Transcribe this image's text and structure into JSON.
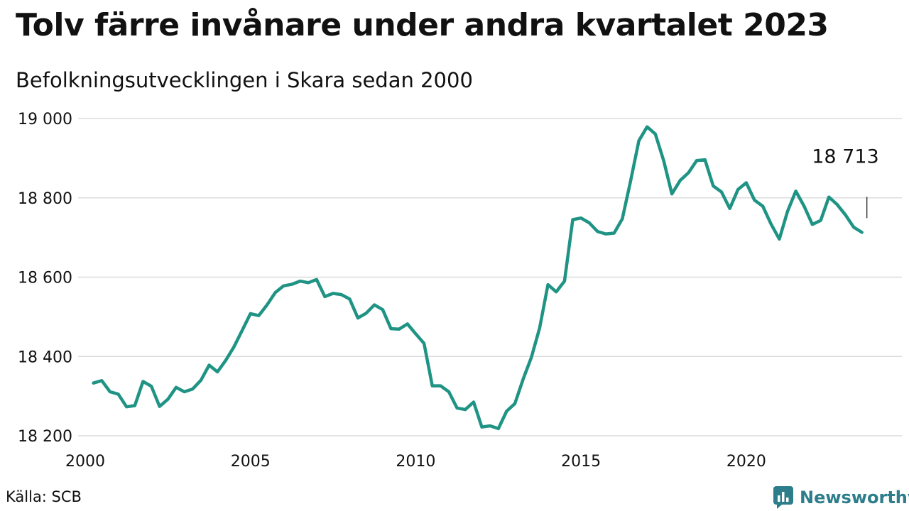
{
  "title": "Tolv färre invånare under andra kvartalet 2023",
  "subtitle": "Befolkningsutvecklingen i Skara sedan 2000",
  "source": "Källa: SCB",
  "brand": "Newsworthy",
  "colors": {
    "line": "#1f9384",
    "grid": "#dcdcdc",
    "brand": "#2d7d8b"
  },
  "chart_data": {
    "type": "line",
    "title": "Tolv färre invånare under andra kvartalet 2023",
    "subtitle": "Befolkningsutvecklingen i Skara sedan 2000",
    "xlabel": "",
    "ylabel": "",
    "xlim": [
      2000,
      2024
    ],
    "ylim": [
      18200,
      19000
    ],
    "grid": true,
    "x_ticks": [
      2000,
      2005,
      2010,
      2015,
      2020
    ],
    "x_tick_labels": [
      "2000",
      "2005",
      "2010",
      "2015",
      "2020"
    ],
    "y_ticks": [
      18200,
      18400,
      18600,
      18800,
      19000
    ],
    "y_tick_labels": [
      "18 200",
      "18 400",
      "18 600",
      "18 800",
      "19 000"
    ],
    "annotation": {
      "text": "18 713",
      "x": 2023.5,
      "y": 18713
    },
    "series": [
      {
        "x": [
          2000.25,
          2000.5,
          2000.75,
          2001.0,
          2001.25,
          2001.5,
          2001.75,
          2002.0,
          2002.25,
          2002.5,
          2002.75,
          2003.0,
          2003.25,
          2003.5,
          2003.75,
          2004.0,
          2004.25,
          2004.5,
          2004.75,
          2005.0,
          2005.25,
          2005.5,
          2005.75,
          2006.0,
          2006.25,
          2006.5,
          2006.75,
          2007.0,
          2007.25,
          2007.5,
          2007.75,
          2008.0,
          2008.25,
          2008.5,
          2008.75,
          2009.0,
          2009.25,
          2009.5,
          2009.75,
          2010.0,
          2010.25,
          2010.5,
          2010.75,
          2011.0,
          2011.25,
          2011.5,
          2011.75,
          2012.0,
          2012.25,
          2012.5,
          2012.75,
          2013.0,
          2013.25,
          2013.5,
          2013.75,
          2014.0,
          2014.25,
          2014.5,
          2014.75,
          2015.0,
          2015.25,
          2015.5,
          2015.75,
          2016.0,
          2016.25,
          2016.5,
          2016.75,
          2017.0,
          2017.25,
          2017.5,
          2017.75,
          2018.0,
          2018.25,
          2018.5,
          2018.75,
          2019.0,
          2019.25,
          2019.5,
          2019.75,
          2020.0,
          2020.25,
          2020.5,
          2020.75,
          2021.0,
          2021.25,
          2021.5,
          2021.75,
          2022.0,
          2022.25,
          2022.5,
          2022.75,
          2023.0,
          2023.25,
          2023.5
        ],
        "values": [
          18333,
          18339,
          18311,
          18305,
          18273,
          18276,
          18337,
          18325,
          18274,
          18292,
          18322,
          18311,
          18318,
          18340,
          18378,
          18361,
          18390,
          18424,
          18466,
          18508,
          18503,
          18530,
          18561,
          18578,
          18582,
          18590,
          18586,
          18594,
          18551,
          18559,
          18556,
          18545,
          18497,
          18509,
          18530,
          18518,
          18470,
          18469,
          18482,
          18457,
          18433,
          18326,
          18326,
          18311,
          18270,
          18266,
          18285,
          18222,
          18225,
          18218,
          18262,
          18281,
          18343,
          18398,
          18472,
          18581,
          18563,
          18590,
          18745,
          18749,
          18737,
          18715,
          18709,
          18711,
          18747,
          18842,
          18944,
          18979,
          18961,
          18894,
          18810,
          18844,
          18863,
          18894,
          18896,
          18830,
          18815,
          18773,
          18821,
          18838,
          18794,
          18779,
          18734,
          18696,
          18766,
          18817,
          18779,
          18733,
          18743,
          18802,
          18783,
          18757,
          18726,
          18713
        ]
      }
    ]
  }
}
